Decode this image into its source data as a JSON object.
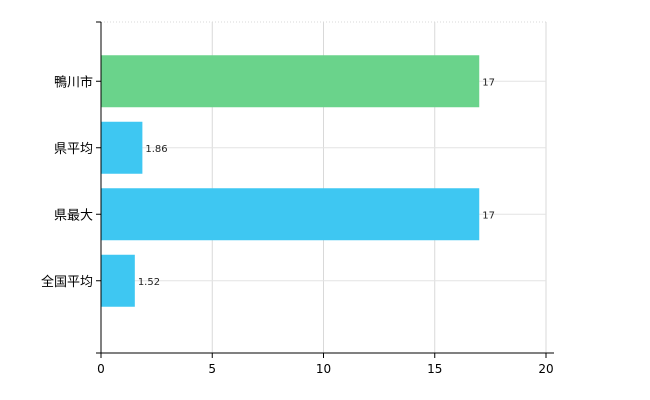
{
  "chart_data": {
    "type": "bar",
    "orientation": "horizontal",
    "categories": [
      "鴨川市",
      "県平均",
      "県最大",
      "全国平均"
    ],
    "values": [
      17,
      1.86,
      17,
      1.52
    ],
    "value_labels": [
      "17",
      "1.86",
      "17",
      "1.52"
    ],
    "colors": [
      "#6ad38b",
      "#3ec7f2",
      "#3ec7f2",
      "#3ec7f2"
    ],
    "title": "",
    "xlabel": "",
    "ylabel": "",
    "xlim": [
      0,
      20
    ],
    "x_ticks": [
      0,
      5,
      10,
      15,
      20
    ],
    "x_tick_labels": [
      "0",
      "5",
      "10",
      "15",
      "20"
    ],
    "grid": true,
    "legend": "none"
  }
}
